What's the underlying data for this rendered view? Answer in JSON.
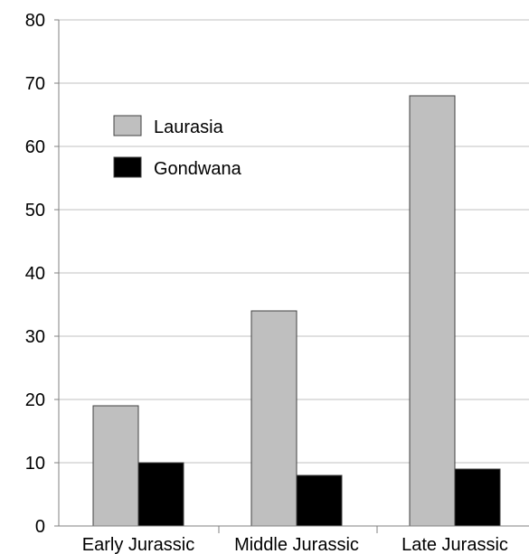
{
  "chart_data": {
    "type": "bar",
    "title": "",
    "xlabel": "",
    "ylabel": "",
    "categories": [
      "Early Jurassic",
      "Middle Jurassic",
      "Late Jurassic"
    ],
    "series": [
      {
        "name": "Laurasia",
        "values": [
          19,
          34,
          68
        ],
        "color": "#bfbfbf"
      },
      {
        "name": "Gondwana",
        "values": [
          10,
          8,
          9
        ],
        "color": "#000000"
      }
    ],
    "ylim": [
      0,
      80
    ],
    "yticks": [
      "0",
      "10",
      "20",
      "30",
      "40",
      "50",
      "60",
      "70",
      "80"
    ],
    "grid": true,
    "legend_position": "top-left"
  }
}
